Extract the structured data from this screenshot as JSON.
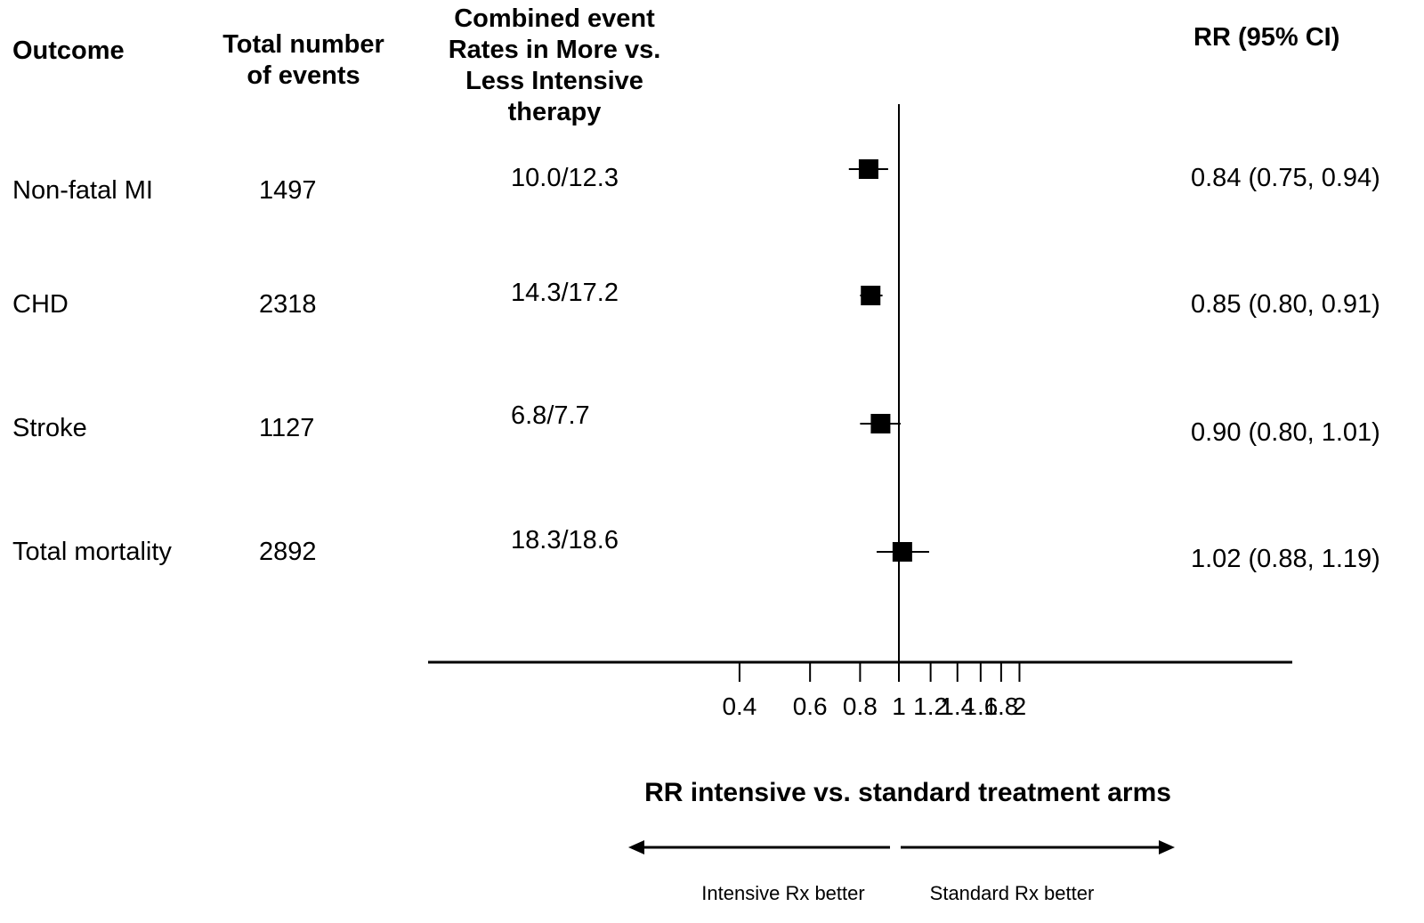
{
  "headers": {
    "outcome": "Outcome",
    "total": [
      "Total number",
      "of events"
    ],
    "rates": [
      "Combined event",
      "Rates in More vs.",
      "Less Intensive",
      "therapy"
    ],
    "rr": "RR (95% CI)"
  },
  "rows": [
    {
      "outcome": "Non-fatal MI",
      "total": "1497",
      "rates": "10.0/12.3",
      "rr_text": "0.84 (0.75, 0.94)"
    },
    {
      "outcome": "CHD",
      "total": "2318",
      "rates": "14.3/17.2",
      "rr_text": "0.85 (0.80, 0.91)"
    },
    {
      "outcome": "Stroke",
      "total": "1127",
      "rates": "6.8/7.7",
      "rr_text": "0.90 (0.80, 1.01)"
    },
    {
      "outcome": "Total mortality",
      "total": "2892",
      "rates": "18.3/18.6",
      "rr_text": "1.02 (0.88, 1.19)"
    }
  ],
  "chart_data": {
    "type": "scatter",
    "subtype": "forest-plot",
    "xscale": "log",
    "xlabel": "RR intensive vs. standard treatment arms",
    "xticks": [
      0.4,
      0.6,
      0.8,
      1,
      1.2,
      1.4,
      1.6,
      1.8,
      2
    ],
    "xtick_labels": [
      "0.4",
      "0.6",
      "0.8",
      "1",
      "1.2",
      "1.4",
      "1.6",
      "1.8",
      "2"
    ],
    "reference_line": 1,
    "categories": [
      "Non-fatal MI",
      "CHD",
      "Stroke",
      "Total mortality"
    ],
    "estimates": [
      {
        "rr": 0.84,
        "lo": 0.75,
        "hi": 0.94
      },
      {
        "rr": 0.85,
        "lo": 0.8,
        "hi": 0.91
      },
      {
        "rr": 0.9,
        "lo": 0.8,
        "hi": 1.01
      },
      {
        "rr": 1.02,
        "lo": 0.88,
        "hi": 1.19
      }
    ],
    "direction_labels": {
      "left": "Intensive Rx better",
      "right": "Standard Rx better"
    },
    "grid": false,
    "legend": "none"
  }
}
